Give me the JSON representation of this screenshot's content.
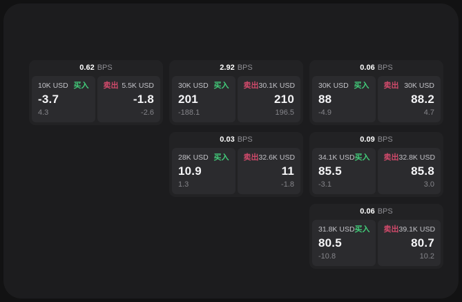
{
  "labels": {
    "buy": "买入",
    "sell": "卖出",
    "bps": "BPS"
  },
  "colors": {
    "buy_accent": "#42cd7a",
    "sell_accent": "#d14a6b",
    "panel_bg": "#1c1c1e",
    "card_bg": "#222224",
    "tile_bg": "#2b2b2e",
    "price_text": "#f5f5f7",
    "muted_text": "#8e8e93"
  },
  "cards": [
    {
      "bps": "0.62",
      "buy": {
        "amount": "10K USD",
        "price": "-3.7",
        "change": "4.3"
      },
      "sell": {
        "amount": "5.5K USD",
        "price": "-1.8",
        "change": "-2.6"
      }
    },
    {
      "bps": "2.92",
      "buy": {
        "amount": "30K USD",
        "price": "201",
        "change": "-188.1"
      },
      "sell": {
        "amount": "30.1K USD",
        "price": "210",
        "change": "196.5"
      }
    },
    {
      "bps": "0.06",
      "buy": {
        "amount": "30K USD",
        "price": "88",
        "change": "-4.9"
      },
      "sell": {
        "amount": "30K USD",
        "price": "88.2",
        "change": "4.7"
      }
    },
    {
      "bps": "0.03",
      "buy": {
        "amount": "28K USD",
        "price": "10.9",
        "change": "1.3"
      },
      "sell": {
        "amount": "32.6K USD",
        "price": "11",
        "change": "-1.8"
      }
    },
    {
      "bps": "0.09",
      "buy": {
        "amount": "34.1K USD",
        "price": "85.5",
        "change": "-3.1"
      },
      "sell": {
        "amount": "32.8K USD",
        "price": "85.8",
        "change": "3.0"
      }
    },
    {
      "bps": "0.06",
      "buy": {
        "amount": "31.8K USD",
        "price": "80.5",
        "change": "-10.8"
      },
      "sell": {
        "amount": "39.1K USD",
        "price": "80.7",
        "change": "10.2"
      }
    }
  ]
}
